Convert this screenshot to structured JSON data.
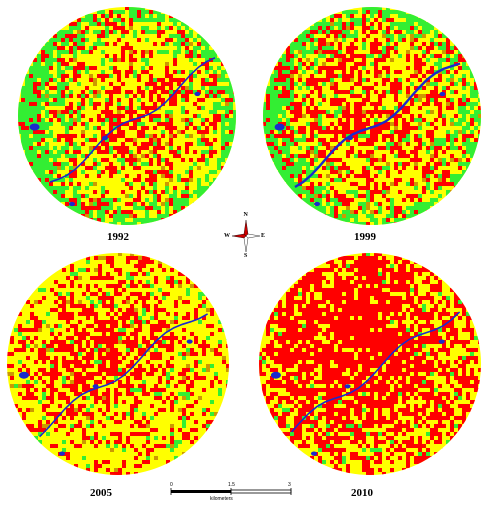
{
  "colors": {
    "built_up": "#ff0000",
    "agriculture": "#ffff00",
    "vegetation": "#33ee33",
    "water": "#1a2bcc",
    "fallow": "#cc9900"
  },
  "maps": [
    {
      "year": "1992",
      "composition": {
        "built_up": 0.22,
        "agriculture": 0.48,
        "vegetation": 0.25,
        "water": 0.02,
        "fallow": 0.03
      }
    },
    {
      "year": "1999",
      "composition": {
        "built_up": 0.28,
        "agriculture": 0.44,
        "vegetation": 0.22,
        "water": 0.03,
        "fallow": 0.03
      }
    },
    {
      "year": "2005",
      "composition": {
        "built_up": 0.33,
        "agriculture": 0.52,
        "vegetation": 0.12,
        "water": 0.01,
        "fallow": 0.02
      }
    },
    {
      "year": "2010",
      "composition": {
        "built_up": 0.42,
        "agriculture": 0.44,
        "vegetation": 0.12,
        "water": 0.02,
        "fallow": 0.0
      }
    }
  ],
  "compass": {
    "north": "N",
    "south": "S",
    "east": "E",
    "west": "W"
  },
  "scale_bar": {
    "ticks": [
      "0",
      "1.5",
      "3"
    ],
    "unit": "kilometers"
  }
}
